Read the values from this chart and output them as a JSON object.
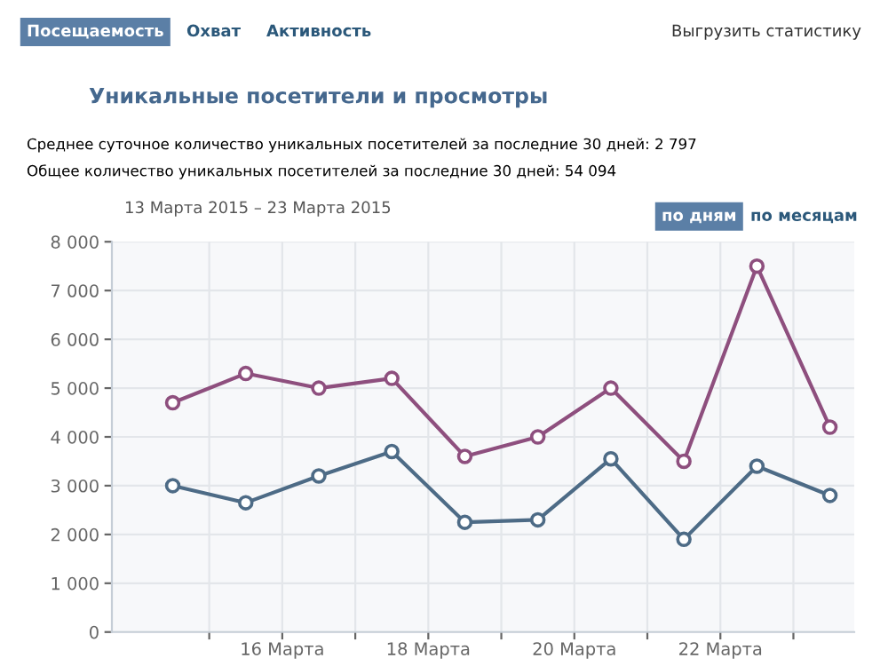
{
  "chart_data": {
    "type": "line",
    "title": "Уникальные посетители и просмотры",
    "subtitle": "13 Марта 2015 – 23 Марта 2015",
    "annotations": [
      "Посещаемость",
      "Охват",
      "Активность",
      "Выгрузить статистику",
      "Среднее суточное количество уникальных посетителей за последние 30 дней: 2 797",
      "Общее количество уникальных посетителей за последние 30 дней: 54 094",
      "по дням",
      "по месяцам"
    ],
    "x": [
      "2015-03-14T12:00",
      "2015-03-15T12:00",
      "2015-03-16T12:00",
      "2015-03-17T12:00",
      "2015-03-18T12:00",
      "2015-03-19T12:00",
      "2015-03-20T12:00",
      "2015-03-21T12:00",
      "2015-03-22T12:00",
      "2015-03-23T12:00"
    ],
    "series": [
      {
        "color": "#8e4f7e",
        "values": [
          4700,
          5300,
          5000,
          5200,
          3600,
          4000,
          5000,
          3500,
          7500,
          4200
        ]
      },
      {
        "color": "#4d6b86",
        "values": [
          3000,
          2650,
          3200,
          3700,
          2250,
          2300,
          3550,
          1900,
          3400,
          2800
        ]
      }
    ],
    "xlim": [
      "2015-03-13T16:00",
      "2015-03-23T20:00"
    ],
    "xticks": [
      {
        "value": "2015-03-15",
        "label": null
      },
      {
        "value": "2015-03-16",
        "label": "16 Марта"
      },
      {
        "value": "2015-03-17",
        "label": null
      },
      {
        "value": "2015-03-18",
        "label": "18 Марта"
      },
      {
        "value": "2015-03-19",
        "label": null
      },
      {
        "value": "2015-03-20",
        "label": "20 Марта"
      },
      {
        "value": "2015-03-21",
        "label": null
      },
      {
        "value": "2015-03-22",
        "label": "22 Марта"
      },
      {
        "value": "2015-03-23",
        "label": null
      }
    ],
    "ylim": [
      0,
      8000
    ],
    "yticks": [
      0,
      {
        "value": 1000,
        "label": "1 000"
      },
      {
        "value": 2000,
        "label": "2 000"
      },
      {
        "value": 3000,
        "label": "3 000"
      },
      {
        "value": 4000,
        "label": "4 000"
      },
      {
        "value": 5000,
        "label": "5 000"
      },
      {
        "value": 6000,
        "label": "6 000"
      },
      {
        "value": 7000,
        "label": "7 000"
      },
      {
        "value": 8000,
        "label": "8 000"
      }
    ],
    "grid": true,
    "marker": "circle",
    "line_style": "solid",
    "legend": false
  }
}
